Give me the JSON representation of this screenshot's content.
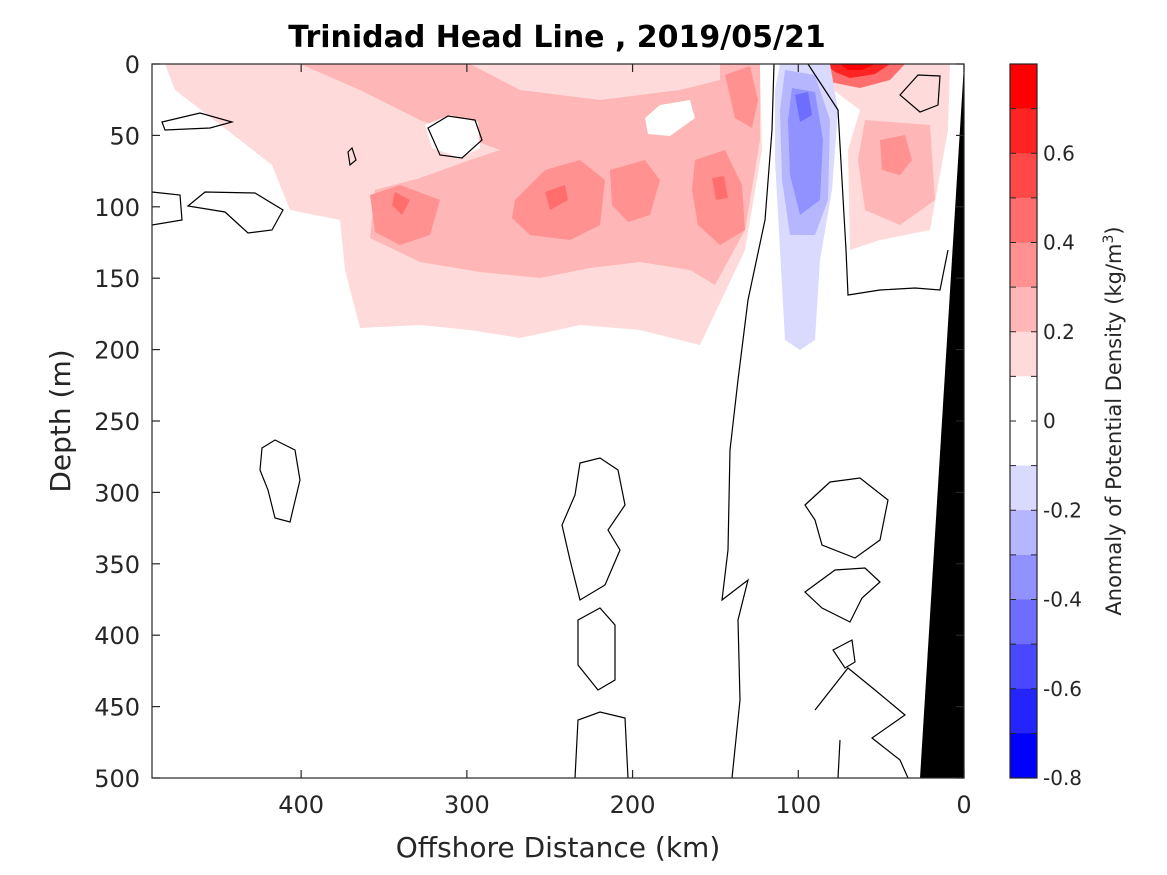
{
  "chart_data": {
    "type": "heatmap",
    "title": "Trinidad Head Line , 2019/05/21",
    "xlabel": "Offshore Distance (km)",
    "ylabel": "Depth (m)",
    "xlim": [
      490,
      0
    ],
    "ylim": [
      500,
      0
    ],
    "x_reversed": true,
    "y_reversed": true,
    "x_ticks": [
      "400",
      "300",
      "200",
      "100",
      "0"
    ],
    "y_ticks": [
      "0",
      "50",
      "100",
      "150",
      "200",
      "250",
      "300",
      "350",
      "400",
      "450",
      "500"
    ],
    "colorbar": {
      "label": "Anomaly of Potential Density (kg/m",
      "label_sup": "3",
      "label_close": ")",
      "range": [
        -0.8,
        0.8
      ],
      "ticks": [
        "0.6",
        "0.4",
        "0.2",
        "0",
        "-0.2",
        "-0.4",
        "-0.6",
        "-0.8"
      ],
      "colors_top_to_bottom": [
        "#ff0000",
        "#ff2424",
        "#ff4848",
        "#ff6d6d",
        "#ff9191",
        "#ffb6b6",
        "#ffdada",
        "#ffffff",
        "#ffffff",
        "#dadaff",
        "#b6b6ff",
        "#9191ff",
        "#6d6dff",
        "#4848ff",
        "#2424ff",
        "#0000ff"
      ]
    },
    "features": [
      {
        "name": "positive-anomaly-layer",
        "value": 0.2,
        "x_range": [
          480,
          120
        ],
        "depth_range": [
          0,
          195
        ]
      },
      {
        "name": "positive-core",
        "value": 0.4,
        "x": 340,
        "depth": 100
      },
      {
        "name": "positive-core",
        "value": 0.4,
        "x": 250,
        "depth": 95
      },
      {
        "name": "positive-core",
        "value": 0.4,
        "x": 148,
        "depth": 90
      },
      {
        "name": "negative-anomaly-tongue",
        "value": -0.4,
        "x_range": [
          120,
          80
        ],
        "depth_range": [
          0,
          200
        ]
      },
      {
        "name": "surface-maximum",
        "value": 0.8,
        "x": 62,
        "depth": 0
      },
      {
        "name": "nearshore-positive",
        "value": 0.4,
        "x": 50,
        "depth": 65
      }
    ],
    "grid": false,
    "bathymetry": "black wedge near 0 km"
  }
}
